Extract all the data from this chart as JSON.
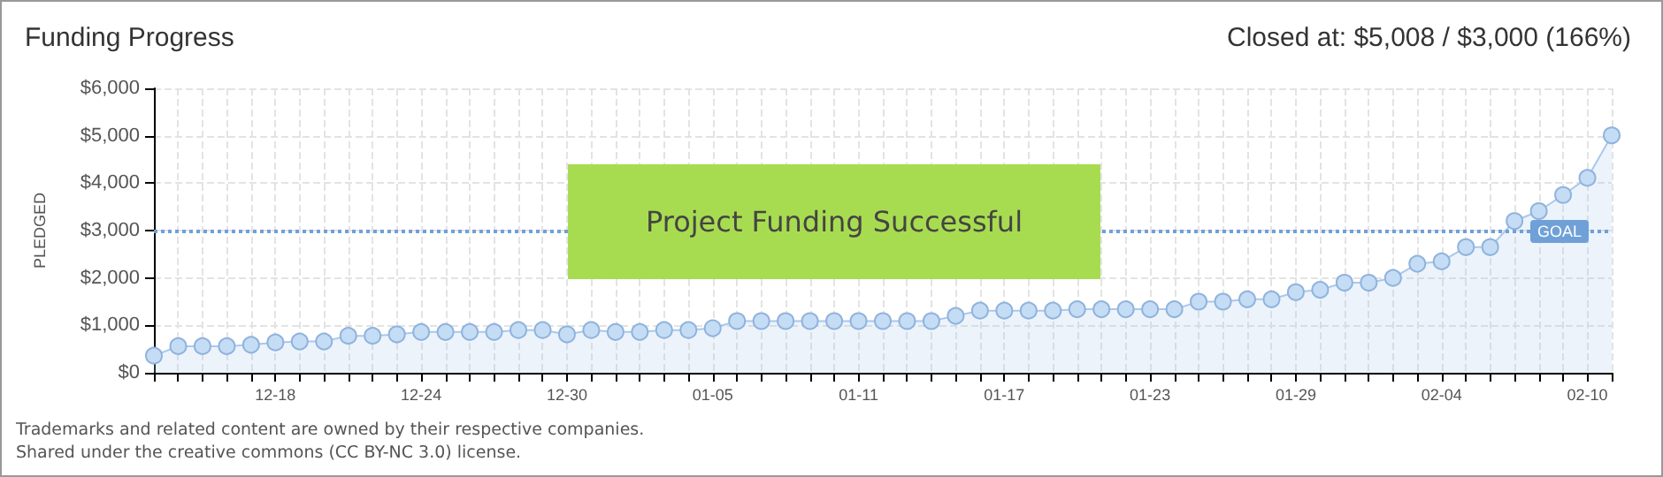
{
  "chart_data": {
    "type": "area",
    "title": "Funding Progress",
    "subtitle": "Closed at: $5,008 / $3,000 (166%)",
    "ylabel": "PLEDGED",
    "categories": [
      null,
      null,
      null,
      null,
      null,
      "12-18",
      null,
      null,
      null,
      null,
      null,
      "12-24",
      null,
      null,
      null,
      null,
      null,
      "12-30",
      null,
      null,
      null,
      null,
      null,
      "01-05",
      null,
      null,
      null,
      null,
      null,
      "01-11",
      null,
      null,
      null,
      null,
      null,
      "01-17",
      null,
      null,
      null,
      null,
      null,
      "01-23",
      null,
      null,
      null,
      null,
      null,
      "01-29",
      null,
      null,
      null,
      null,
      null,
      "02-04",
      null,
      null,
      null,
      null,
      null,
      "02-10",
      null
    ],
    "series": [
      {
        "color": "#a9c8ec",
        "values": [
          360,
          560,
          560,
          560,
          590,
          640,
          660,
          660,
          780,
          780,
          810,
          860,
          860,
          860,
          860,
          900,
          900,
          810,
          900,
          860,
          860,
          900,
          900,
          940,
          1090,
          1090,
          1090,
          1090,
          1090,
          1090,
          1090,
          1090,
          1090,
          1200,
          1310,
          1310,
          1310,
          1310,
          1340,
          1340,
          1340,
          1340,
          1340,
          1500,
          1500,
          1550,
          1550,
          1700,
          1750,
          1900,
          1900,
          2000,
          2300,
          2350,
          2650,
          2650,
          3200,
          3410,
          3750,
          4110,
          5008
        ]
      }
    ],
    "ylim": [
      0,
      6000
    ],
    "yticks": [
      {
        "value": 0,
        "label": "$0"
      },
      {
        "value": 1000,
        "label": "$1,000"
      },
      {
        "value": 2000,
        "label": "$2,000"
      },
      {
        "value": 3000,
        "label": "$3,000"
      },
      {
        "value": 4000,
        "label": "$4,000"
      },
      {
        "value": 5000,
        "label": "$5,000"
      },
      {
        "value": 6000,
        "label": "$6,000"
      }
    ],
    "ref_lines": [
      {
        "axis": "y",
        "value": 3000,
        "label": "GOAL",
        "color": "#6fa0d8",
        "line_style": "dotted"
      }
    ],
    "annotations": [
      "Project Funding Successful",
      "Trademarks and related content are owned by their respective companies.",
      "Shared under the creative commons (CC BY-NC 3.0) license."
    ],
    "grid": true,
    "marker": "circle",
    "line_style": "solid"
  }
}
